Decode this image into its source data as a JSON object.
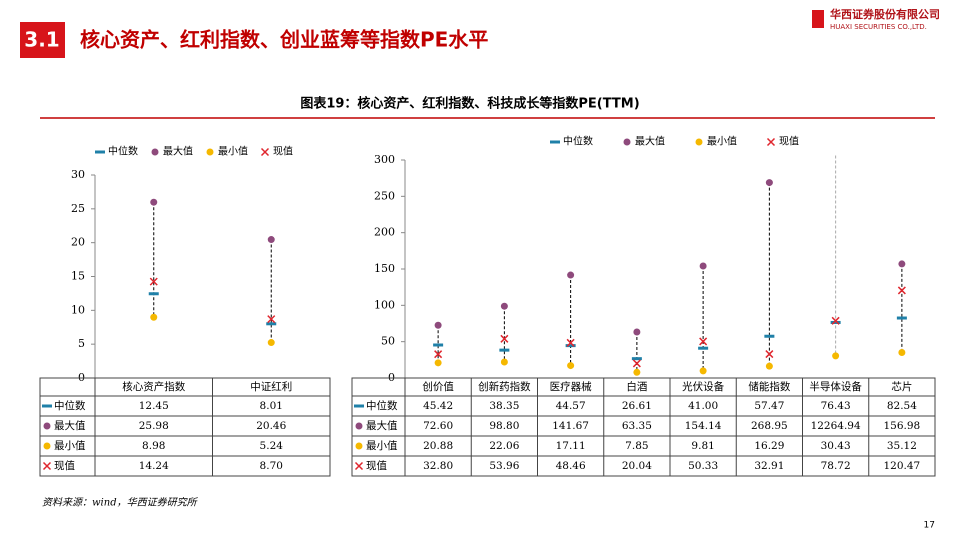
{
  "header": {
    "section": "3.1",
    "title": "核心资产、红利指数、创业蓝筹等指数PE水平",
    "company": "华西证券股份有限公司",
    "company_en": "HUAXI SECURITIES CO.,LTD."
  },
  "figure_title": "图表19：核心资产、红利指数、科技成长等指数PE(TTM)",
  "chart_data": [
    {
      "type": "dot",
      "categories": [
        "核心资产指数",
        "中证红利"
      ],
      "series": [
        {
          "name": "中位数",
          "color": "#1f80a8",
          "marker": "dash",
          "values": [
            12.45,
            8.01
          ],
          "value_labels": [
            "12.45",
            "8.01"
          ]
        },
        {
          "name": "最大值",
          "color": "#8e4a7c",
          "marker": "circle",
          "values": [
            25.98,
            20.46
          ],
          "value_labels": [
            "25.98",
            "20.46"
          ]
        },
        {
          "name": "最小值",
          "color": "#f5b800",
          "marker": "circle",
          "values": [
            8.98,
            5.24
          ],
          "value_labels": [
            "8.98",
            "5.24"
          ]
        },
        {
          "name": "现值",
          "color": "#e0262e",
          "marker": "x",
          "values": [
            14.24,
            8.7
          ],
          "value_labels": [
            "14.24",
            "8.70"
          ]
        }
      ],
      "ylim": [
        0,
        30
      ],
      "yticks": [
        0,
        5,
        10,
        15,
        20,
        25,
        30
      ]
    },
    {
      "type": "dot",
      "categories": [
        "创价值",
        "创新药指数",
        "医疗器械",
        "白酒",
        "光伏设备",
        "储能指数",
        "半导体设备",
        "芯片"
      ],
      "series": [
        {
          "name": "中位数",
          "color": "#1f80a8",
          "marker": "dash",
          "values": [
            45.42,
            38.35,
            44.57,
            26.61,
            41.0,
            57.47,
            76.43,
            82.54
          ],
          "value_labels": [
            "45.42",
            "38.35",
            "44.57",
            "26.61",
            "41.00",
            "57.47",
            "76.43",
            "82.54"
          ]
        },
        {
          "name": "最大值",
          "color": "#8e4a7c",
          "marker": "circle",
          "values": [
            72.6,
            98.8,
            141.67,
            63.35,
            154.14,
            268.95,
            12264.94,
            156.98
          ],
          "value_labels": [
            "72.60",
            "98.80",
            "141.67",
            "63.35",
            "154.14",
            "268.95",
            "12264.94",
            "156.98"
          ]
        },
        {
          "name": "最小值",
          "color": "#f5b800",
          "marker": "circle",
          "values": [
            20.88,
            22.06,
            17.11,
            7.85,
            9.81,
            16.29,
            30.43,
            35.12
          ],
          "value_labels": [
            "20.88",
            "22.06",
            "17.11",
            "7.85",
            "9.81",
            "16.29",
            "30.43",
            "35.12"
          ]
        },
        {
          "name": "现值",
          "color": "#e0262e",
          "marker": "x",
          "values": [
            32.8,
            53.96,
            48.46,
            20.04,
            50.33,
            32.91,
            78.72,
            120.47
          ],
          "value_labels": [
            "32.80",
            "53.96",
            "48.46",
            "20.04",
            "50.33",
            "32.91",
            "78.72",
            "120.47"
          ]
        }
      ],
      "ylim": [
        0,
        300
      ],
      "yticks": [
        0,
        50,
        100,
        150,
        200,
        250,
        300
      ]
    }
  ],
  "source": "资料来源：wind，华西证券研究所",
  "page_number": "17"
}
